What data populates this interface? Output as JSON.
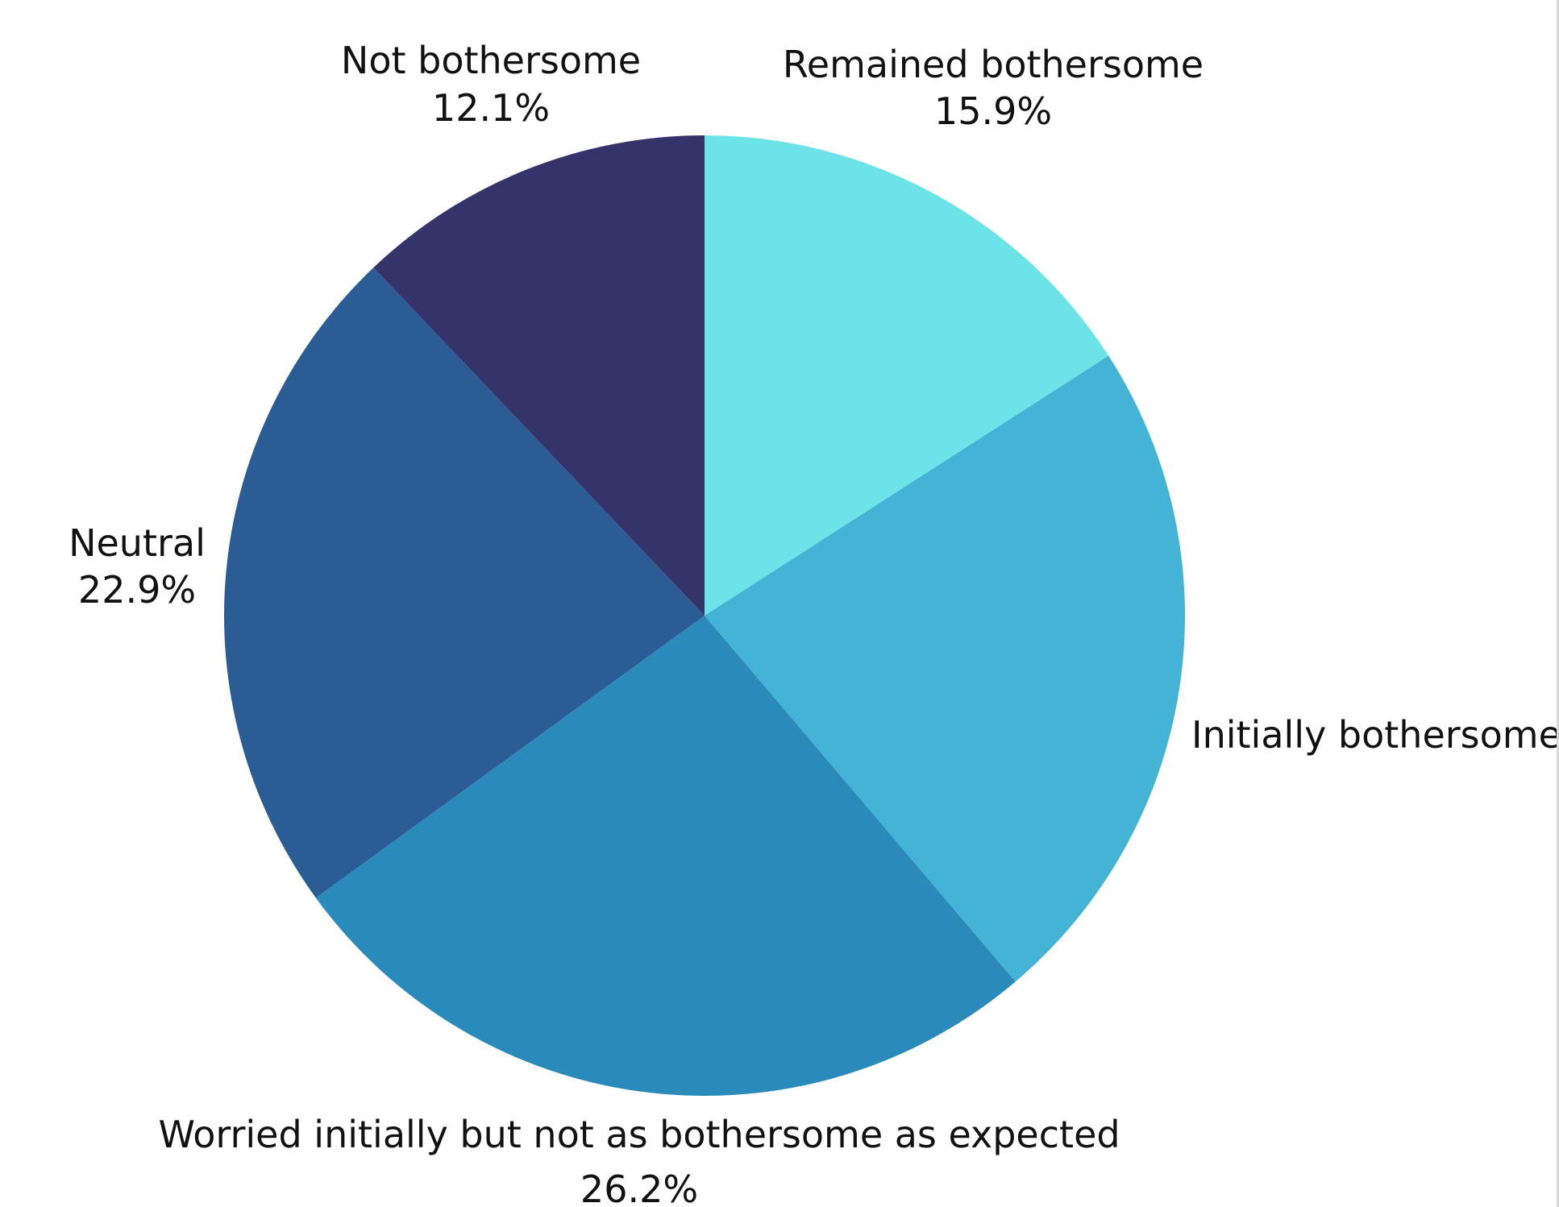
{
  "chart_data": {
    "type": "pie",
    "title": "",
    "start_angle_deg": 0,
    "direction": "clockwise",
    "slices": [
      {
        "label": "Remained bothersome",
        "value": 15.9,
        "value_text": "15.9%",
        "color": "#6ce3e7"
      },
      {
        "label": "Initially bothersome",
        "value": 22.9,
        "value_text": "",
        "color": "#43b4d6"
      },
      {
        "label": "Worried initially but not as bothersome as expected",
        "value": 26.2,
        "value_text": "26.2%",
        "color": "#2a8aba"
      },
      {
        "label": "Neutral",
        "value": 22.9,
        "value_text": "22.9%",
        "color": "#2c5c94"
      },
      {
        "label": "Not bothersome",
        "value": 12.1,
        "value_text": "12.1%",
        "color": "#34336a"
      }
    ]
  }
}
